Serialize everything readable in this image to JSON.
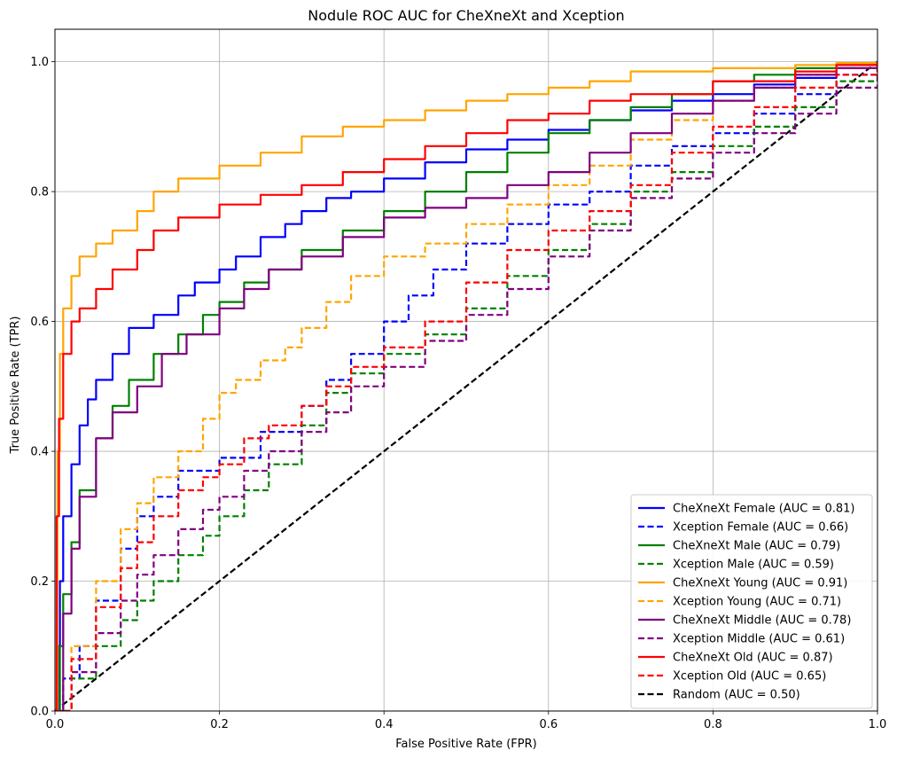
{
  "chart_data": {
    "type": "line",
    "title": "Nodule ROC AUC for CheXneXt and Xception",
    "xlabel": "False Positive Rate (FPR)",
    "ylabel": "True Positive Rate (TPR)",
    "xlim": [
      0.0,
      1.0
    ],
    "ylim": [
      0.0,
      1.05
    ],
    "xticks": [
      "0.0",
      "0.2",
      "0.4",
      "0.6",
      "0.8",
      "1.0"
    ],
    "yticks": [
      "0.0",
      "0.2",
      "0.4",
      "0.6",
      "0.8",
      "1.0"
    ],
    "grid": true,
    "legend_position": "lower-right",
    "series": [
      {
        "name": "CheXneXt Female (AUC = 0.81)",
        "color": "#0000ff",
        "dash": "solid",
        "x": [
          0,
          0.004,
          0.006,
          0.01,
          0.02,
          0.03,
          0.04,
          0.05,
          0.07,
          0.09,
          0.12,
          0.15,
          0.17,
          0.2,
          0.22,
          0.25,
          0.28,
          0.3,
          0.33,
          0.36,
          0.4,
          0.45,
          0.5,
          0.55,
          0.6,
          0.65,
          0.7,
          0.75,
          0.8,
          0.85,
          0.9,
          0.95,
          1.0
        ],
        "y": [
          0,
          0.1,
          0.2,
          0.3,
          0.38,
          0.44,
          0.48,
          0.51,
          0.55,
          0.59,
          0.61,
          0.64,
          0.66,
          0.68,
          0.7,
          0.73,
          0.75,
          0.77,
          0.79,
          0.8,
          0.82,
          0.845,
          0.865,
          0.88,
          0.895,
          0.91,
          0.925,
          0.94,
          0.95,
          0.965,
          0.975,
          0.99,
          1.0
        ]
      },
      {
        "name": "Xception Female (AUC = 0.66)",
        "color": "#0000ff",
        "dash": "dashed",
        "x": [
          0,
          0.01,
          0.03,
          0.05,
          0.08,
          0.1,
          0.12,
          0.15,
          0.2,
          0.25,
          0.3,
          0.33,
          0.36,
          0.4,
          0.43,
          0.46,
          0.5,
          0.55,
          0.6,
          0.65,
          0.7,
          0.75,
          0.8,
          0.85,
          0.9,
          0.95,
          1.0
        ],
        "y": [
          0,
          0.05,
          0.1,
          0.17,
          0.25,
          0.3,
          0.33,
          0.37,
          0.39,
          0.43,
          0.47,
          0.51,
          0.55,
          0.6,
          0.64,
          0.68,
          0.72,
          0.75,
          0.78,
          0.8,
          0.84,
          0.87,
          0.89,
          0.92,
          0.95,
          0.98,
          1.0
        ]
      },
      {
        "name": "CheXneXt Male (AUC = 0.79)",
        "color": "#008000",
        "dash": "solid",
        "x": [
          0,
          0.006,
          0.01,
          0.02,
          0.03,
          0.05,
          0.07,
          0.09,
          0.12,
          0.15,
          0.18,
          0.2,
          0.23,
          0.26,
          0.3,
          0.35,
          0.4,
          0.45,
          0.5,
          0.55,
          0.6,
          0.65,
          0.7,
          0.75,
          0.8,
          0.85,
          0.9,
          0.95,
          1.0
        ],
        "y": [
          0,
          0.1,
          0.18,
          0.26,
          0.34,
          0.42,
          0.47,
          0.51,
          0.55,
          0.58,
          0.61,
          0.63,
          0.66,
          0.68,
          0.71,
          0.74,
          0.77,
          0.8,
          0.83,
          0.86,
          0.89,
          0.91,
          0.93,
          0.95,
          0.97,
          0.98,
          0.99,
          0.995,
          1.0
        ]
      },
      {
        "name": "Xception Male (AUC = 0.59)",
        "color": "#008000",
        "dash": "dashed",
        "x": [
          0,
          0.02,
          0.05,
          0.08,
          0.1,
          0.12,
          0.15,
          0.18,
          0.2,
          0.23,
          0.26,
          0.3,
          0.33,
          0.36,
          0.4,
          0.45,
          0.5,
          0.55,
          0.6,
          0.65,
          0.7,
          0.75,
          0.8,
          0.85,
          0.9,
          0.95,
          1.0
        ],
        "y": [
          0,
          0.05,
          0.1,
          0.14,
          0.17,
          0.2,
          0.24,
          0.27,
          0.3,
          0.34,
          0.38,
          0.44,
          0.49,
          0.52,
          0.55,
          0.58,
          0.62,
          0.67,
          0.71,
          0.75,
          0.8,
          0.83,
          0.87,
          0.9,
          0.93,
          0.97,
          1.0
        ]
      },
      {
        "name": "CheXneXt Young (AUC = 0.91)",
        "color": "#ffa500",
        "dash": "solid",
        "x": [
          0,
          0.003,
          0.006,
          0.01,
          0.02,
          0.03,
          0.05,
          0.07,
          0.1,
          0.12,
          0.15,
          0.2,
          0.25,
          0.3,
          0.35,
          0.4,
          0.45,
          0.5,
          0.55,
          0.6,
          0.65,
          0.7,
          0.8,
          0.9,
          0.95,
          1.0
        ],
        "y": [
          0,
          0.4,
          0.55,
          0.62,
          0.67,
          0.7,
          0.72,
          0.74,
          0.77,
          0.8,
          0.82,
          0.84,
          0.86,
          0.885,
          0.9,
          0.91,
          0.925,
          0.94,
          0.95,
          0.96,
          0.97,
          0.985,
          0.99,
          0.995,
          0.998,
          1.0
        ]
      },
      {
        "name": "Xception Young (AUC = 0.71)",
        "color": "#ffa500",
        "dash": "dashed",
        "x": [
          0,
          0.02,
          0.05,
          0.08,
          0.1,
          0.12,
          0.15,
          0.18,
          0.2,
          0.22,
          0.25,
          0.28,
          0.3,
          0.33,
          0.36,
          0.4,
          0.45,
          0.5,
          0.55,
          0.6,
          0.65,
          0.7,
          0.75,
          0.8,
          0.85,
          0.9,
          0.95,
          1.0
        ],
        "y": [
          0,
          0.1,
          0.2,
          0.28,
          0.32,
          0.36,
          0.4,
          0.45,
          0.49,
          0.51,
          0.54,
          0.56,
          0.59,
          0.63,
          0.67,
          0.7,
          0.72,
          0.75,
          0.78,
          0.81,
          0.84,
          0.88,
          0.91,
          0.94,
          0.96,
          0.98,
          0.99,
          1.0
        ]
      },
      {
        "name": "CheXneXt Middle (AUC = 0.78)",
        "color": "#800080",
        "dash": "solid",
        "x": [
          0,
          0.01,
          0.02,
          0.03,
          0.05,
          0.07,
          0.1,
          0.13,
          0.16,
          0.2,
          0.23,
          0.26,
          0.3,
          0.35,
          0.4,
          0.45,
          0.5,
          0.55,
          0.6,
          0.65,
          0.7,
          0.75,
          0.8,
          0.85,
          0.9,
          0.95,
          1.0
        ],
        "y": [
          0,
          0.15,
          0.25,
          0.33,
          0.42,
          0.46,
          0.5,
          0.55,
          0.58,
          0.62,
          0.65,
          0.68,
          0.7,
          0.73,
          0.76,
          0.775,
          0.79,
          0.81,
          0.83,
          0.86,
          0.89,
          0.92,
          0.94,
          0.96,
          0.98,
          0.99,
          1.0
        ]
      },
      {
        "name": "Xception Middle (AUC = 0.61)",
        "color": "#800080",
        "dash": "dashed",
        "x": [
          0,
          0.02,
          0.05,
          0.08,
          0.1,
          0.12,
          0.15,
          0.18,
          0.2,
          0.23,
          0.26,
          0.3,
          0.33,
          0.36,
          0.4,
          0.45,
          0.5,
          0.55,
          0.6,
          0.65,
          0.7,
          0.75,
          0.8,
          0.85,
          0.9,
          0.95,
          1.0
        ],
        "y": [
          0,
          0.06,
          0.12,
          0.17,
          0.21,
          0.24,
          0.28,
          0.31,
          0.33,
          0.37,
          0.4,
          0.43,
          0.46,
          0.5,
          0.53,
          0.57,
          0.61,
          0.65,
          0.7,
          0.74,
          0.79,
          0.82,
          0.86,
          0.89,
          0.92,
          0.96,
          1.0
        ]
      },
      {
        "name": "CheXneXt Old (AUC = 0.87)",
        "color": "#ff0000",
        "dash": "solid",
        "x": [
          0,
          0.002,
          0.005,
          0.01,
          0.02,
          0.03,
          0.05,
          0.07,
          0.1,
          0.12,
          0.15,
          0.2,
          0.25,
          0.3,
          0.35,
          0.4,
          0.45,
          0.5,
          0.55,
          0.6,
          0.65,
          0.7,
          0.8,
          0.9,
          0.95,
          1.0
        ],
        "y": [
          0,
          0.3,
          0.45,
          0.55,
          0.6,
          0.62,
          0.65,
          0.68,
          0.71,
          0.74,
          0.76,
          0.78,
          0.795,
          0.81,
          0.83,
          0.85,
          0.87,
          0.89,
          0.91,
          0.92,
          0.94,
          0.95,
          0.97,
          0.985,
          0.995,
          1.0
        ]
      },
      {
        "name": "Xception Old (AUC = 0.65)",
        "color": "#ff0000",
        "dash": "dashed",
        "x": [
          0,
          0.02,
          0.05,
          0.08,
          0.1,
          0.12,
          0.15,
          0.18,
          0.2,
          0.23,
          0.26,
          0.3,
          0.33,
          0.36,
          0.4,
          0.45,
          0.5,
          0.55,
          0.6,
          0.65,
          0.7,
          0.75,
          0.8,
          0.85,
          0.9,
          0.95,
          1.0
        ],
        "y": [
          0,
          0.08,
          0.16,
          0.22,
          0.26,
          0.3,
          0.34,
          0.36,
          0.38,
          0.42,
          0.44,
          0.47,
          0.5,
          0.53,
          0.56,
          0.6,
          0.66,
          0.71,
          0.74,
          0.77,
          0.81,
          0.86,
          0.9,
          0.93,
          0.96,
          0.98,
          1.0
        ]
      },
      {
        "name": "Random (AUC = 0.50)",
        "color": "#000000",
        "dash": "dashed",
        "x": [
          0,
          1
        ],
        "y": [
          0,
          1
        ]
      }
    ]
  }
}
